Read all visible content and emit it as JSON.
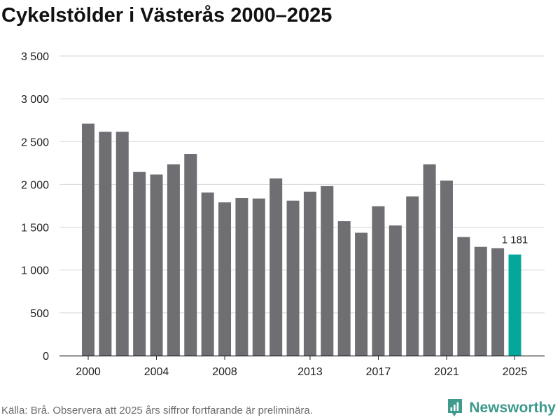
{
  "title": "Cykelstölder i Västerås 2000–2025",
  "source": "Källa: Brå. Observera att 2025 års siffror fortfarande är preliminära.",
  "brand": {
    "name": "Newsworthy"
  },
  "colors": {
    "bar": "#6e6e73",
    "highlight": "#04a89b",
    "grid": "#d6d6d6",
    "axis": "#222222"
  },
  "chart_data": {
    "type": "bar",
    "title": "Cykelstölder i Västerås 2000–2025",
    "xlabel": "",
    "ylabel": "",
    "ylim": [
      0,
      3500
    ],
    "yticks": [
      0,
      500,
      1000,
      1500,
      2000,
      2500,
      3000,
      3500
    ],
    "ytick_labels": [
      "0",
      "500",
      "1 000",
      "1 500",
      "2 000",
      "2 500",
      "3 000",
      "3 500"
    ],
    "xtick_labels": [
      "2000",
      "2004",
      "2008",
      "2013",
      "2017",
      "2021",
      "2025"
    ],
    "grid": true,
    "categories": [
      2000,
      2001,
      2002,
      2003,
      2004,
      2005,
      2006,
      2007,
      2008,
      2009,
      2010,
      2011,
      2012,
      2013,
      2014,
      2015,
      2016,
      2017,
      2018,
      2019,
      2020,
      2021,
      2022,
      2023,
      2024,
      2025
    ],
    "values": [
      2710,
      2615,
      2615,
      2145,
      2115,
      2235,
      2355,
      1905,
      1790,
      1840,
      1835,
      2070,
      1810,
      1915,
      1980,
      1570,
      1435,
      1745,
      1520,
      1860,
      2235,
      2045,
      1385,
      1270,
      1255,
      1181
    ],
    "highlight_category": 2025,
    "annotations": [
      {
        "category": 2025,
        "text": "1 181"
      }
    ]
  }
}
